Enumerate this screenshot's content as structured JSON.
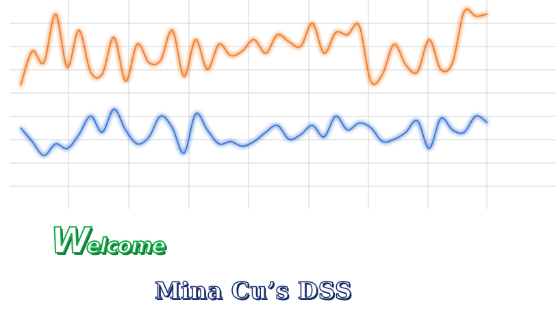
{
  "splash": {
    "welcome_cap": "W",
    "welcome_rest": "elcome",
    "subtitle": "Mina Cu’s DSS"
  },
  "decor_chart": {
    "type": "line",
    "grid": true,
    "colors": {
      "series_1": "#f07a2a",
      "series_2": "#3c74d4",
      "grid": "#d2d2d2"
    },
    "x": [
      0,
      0.5,
      1,
      1.5,
      2,
      2.5,
      3,
      3.5,
      4,
      4.5,
      5,
      5.5,
      6,
      6.5,
      7,
      7.5,
      8,
      8.5,
      9,
      9.5,
      10,
      10.5,
      11,
      11.5,
      12,
      12.5,
      13,
      13.5,
      14,
      14.5,
      15,
      15.5,
      16,
      16.5,
      17,
      17.5,
      18,
      18.5,
      19,
      19.5,
      20
    ],
    "series": [
      {
        "values": [
          7.3,
          8.8,
          8.3,
          10.4,
          8.1,
          9.7,
          7.9,
          7.8,
          9.4,
          7.5,
          9.1,
          8.3,
          8.4,
          9.7,
          7.7,
          9.3,
          8.0,
          9.1,
          8.6,
          8.8,
          9.3,
          8.7,
          9.5,
          9.2,
          9.0,
          10.0,
          8.7,
          9.6,
          9.5,
          9.9,
          7.5,
          7.8,
          9.1,
          8.2,
          7.9,
          9.3,
          8.0,
          8.3,
          10.5,
          10.3,
          10.4
        ]
      },
      {
        "values": [
          5.5,
          4.9,
          4.3,
          4.8,
          4.6,
          5.2,
          6.0,
          5.3,
          6.3,
          5.4,
          4.8,
          5.1,
          6.0,
          5.5,
          4.4,
          6.1,
          5.4,
          4.8,
          4.9,
          4.7,
          4.9,
          5.3,
          5.6,
          5.0,
          5.2,
          5.6,
          5.1,
          6.0,
          5.4,
          5.7,
          5.5,
          4.9,
          5.0,
          5.3,
          5.8,
          4.6,
          5.9,
          5.4,
          5.3,
          6.0,
          5.7
        ]
      }
    ],
    "xlim": [
      0,
      20
    ],
    "ylim": [
      2,
      11
    ]
  }
}
